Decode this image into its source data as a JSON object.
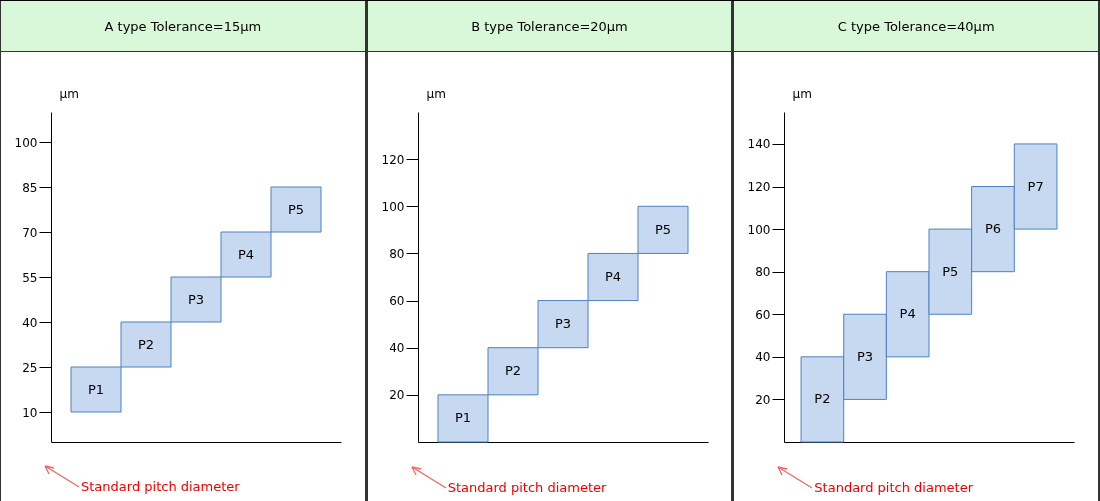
{
  "chart_data": [
    {
      "type": "bar",
      "title": "A type    Tolerance=15µm",
      "ylabel": "µm",
      "categories": [
        "P1",
        "P2",
        "P3",
        "P4",
        "P5"
      ],
      "base": [
        10,
        25,
        40,
        55,
        70
      ],
      "values": [
        15,
        15,
        15,
        15,
        15
      ],
      "color": "#c6d9f1",
      "ylim": [
        0,
        110
      ],
      "yticks": [
        10,
        25,
        40,
        55,
        70,
        85,
        100
      ],
      "grid": false,
      "annotations": [
        "Standard pitch diameter"
      ]
    },
    {
      "type": "bar",
      "title": "B type    Tolerance=20µm",
      "ylabel": "µm",
      "categories": [
        "P1",
        "P2",
        "P3",
        "P4",
        "P5"
      ],
      "base": [
        0,
        20,
        40,
        60,
        80
      ],
      "values": [
        20,
        20,
        20,
        20,
        20
      ],
      "color": "#c6d9f1",
      "ylim": [
        0,
        140
      ],
      "yticks": [
        20,
        40,
        60,
        80,
        100,
        120
      ],
      "grid": false,
      "annotations": [
        "Standard pitch diameter"
      ]
    },
    {
      "type": "bar",
      "title": "C type    Tolerance=40µm",
      "ylabel": "µm",
      "categories": [
        "P2",
        "P3",
        "P4",
        "P5",
        "P6",
        "P7"
      ],
      "base": [
        0,
        20,
        40,
        60,
        80,
        100
      ],
      "values": [
        40,
        40,
        40,
        40,
        40,
        40
      ],
      "color": "#c6d9f1",
      "ylim": [
        0,
        155
      ],
      "yticks": [
        20,
        40,
        60,
        80,
        100,
        120,
        140
      ],
      "grid": false,
      "annotations": [
        "Standard pitch diameter"
      ]
    }
  ]
}
